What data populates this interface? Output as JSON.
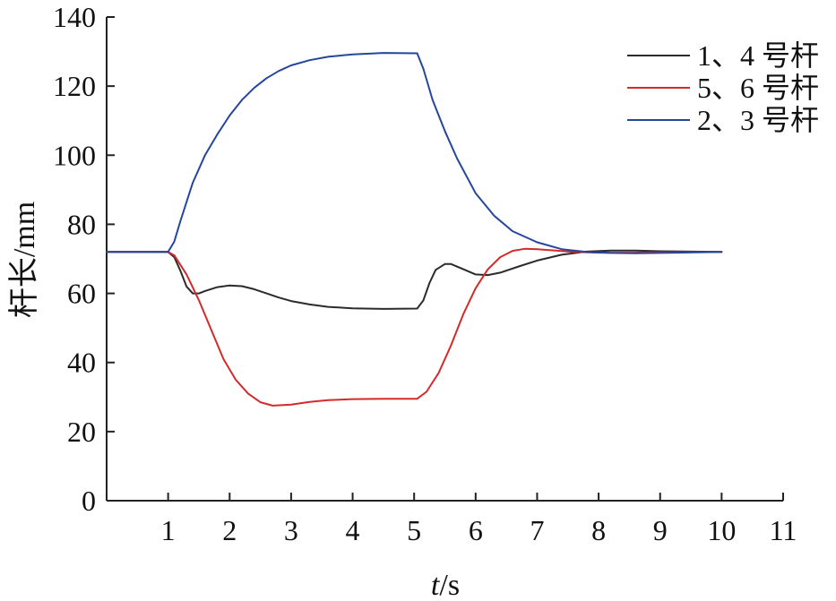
{
  "chart_data": {
    "type": "line",
    "xlabel_italic": "t",
    "xlabel_unit": "/s",
    "ylabel": "杆长/mm",
    "xlim": [
      0,
      11
    ],
    "ylim": [
      0,
      140
    ],
    "xticks": [
      1,
      2,
      3,
      4,
      5,
      6,
      7,
      8,
      9,
      10,
      11
    ],
    "yticks": [
      0,
      20,
      40,
      60,
      80,
      100,
      120,
      140
    ],
    "grid": false,
    "legend_position": "top-right",
    "series": [
      {
        "name": "1、4 号杆",
        "color": "#2b2b2b",
        "points": [
          [
            0,
            72
          ],
          [
            1.0,
            72
          ],
          [
            1.1,
            70.5
          ],
          [
            1.2,
            66.5
          ],
          [
            1.3,
            62
          ],
          [
            1.4,
            60
          ],
          [
            1.5,
            60
          ],
          [
            1.6,
            60.7
          ],
          [
            1.8,
            61.8
          ],
          [
            2.0,
            62.3
          ],
          [
            2.2,
            62.1
          ],
          [
            2.4,
            61.2
          ],
          [
            2.6,
            60
          ],
          [
            2.8,
            58.8
          ],
          [
            3.0,
            57.8
          ],
          [
            3.3,
            56.8
          ],
          [
            3.6,
            56.1
          ],
          [
            4.0,
            55.7
          ],
          [
            4.5,
            55.5
          ],
          [
            5.05,
            55.6
          ],
          [
            5.15,
            58
          ],
          [
            5.25,
            63
          ],
          [
            5.35,
            66.8
          ],
          [
            5.5,
            68.5
          ],
          [
            5.6,
            68.5
          ],
          [
            5.8,
            67
          ],
          [
            6.0,
            65.5
          ],
          [
            6.2,
            65.3
          ],
          [
            6.4,
            66
          ],
          [
            6.7,
            67.8
          ],
          [
            7.0,
            69.5
          ],
          [
            7.4,
            71.2
          ],
          [
            7.8,
            72.1
          ],
          [
            8.2,
            72.4
          ],
          [
            8.6,
            72.4
          ],
          [
            9.0,
            72.2
          ],
          [
            10.0,
            72
          ]
        ]
      },
      {
        "name": "5、6 号杆",
        "color": "#d42a2a",
        "points": [
          [
            0,
            72
          ],
          [
            1.0,
            72
          ],
          [
            1.1,
            71
          ],
          [
            1.3,
            65.5
          ],
          [
            1.5,
            58
          ],
          [
            1.7,
            49.5
          ],
          [
            1.9,
            41
          ],
          [
            2.1,
            35
          ],
          [
            2.3,
            31
          ],
          [
            2.5,
            28.5
          ],
          [
            2.7,
            27.5
          ],
          [
            3.0,
            27.8
          ],
          [
            3.3,
            28.6
          ],
          [
            3.6,
            29.1
          ],
          [
            4.0,
            29.4
          ],
          [
            4.5,
            29.5
          ],
          [
            5.05,
            29.5
          ],
          [
            5.2,
            31.5
          ],
          [
            5.4,
            37
          ],
          [
            5.6,
            45
          ],
          [
            5.8,
            54
          ],
          [
            6.0,
            61.5
          ],
          [
            6.2,
            67
          ],
          [
            6.4,
            70.5
          ],
          [
            6.6,
            72.3
          ],
          [
            6.8,
            72.9
          ],
          [
            7.0,
            72.8
          ],
          [
            7.3,
            72.4
          ],
          [
            7.6,
            72
          ],
          [
            8.0,
            71.8
          ],
          [
            8.5,
            71.8
          ],
          [
            9.0,
            71.9
          ],
          [
            10.0,
            72
          ]
        ]
      },
      {
        "name": "2、3 号杆",
        "color": "#24469c",
        "points": [
          [
            0,
            72
          ],
          [
            1.0,
            72
          ],
          [
            1.1,
            75
          ],
          [
            1.2,
            81
          ],
          [
            1.4,
            92
          ],
          [
            1.6,
            100
          ],
          [
            1.8,
            106
          ],
          [
            2.0,
            111.5
          ],
          [
            2.2,
            116
          ],
          [
            2.4,
            119.5
          ],
          [
            2.6,
            122.3
          ],
          [
            2.8,
            124.4
          ],
          [
            3.0,
            126
          ],
          [
            3.3,
            127.5
          ],
          [
            3.6,
            128.5
          ],
          [
            4.0,
            129.2
          ],
          [
            4.5,
            129.6
          ],
          [
            5.05,
            129.5
          ],
          [
            5.15,
            125
          ],
          [
            5.3,
            116
          ],
          [
            5.5,
            107
          ],
          [
            5.7,
            99
          ],
          [
            6.0,
            89
          ],
          [
            6.3,
            82.5
          ],
          [
            6.6,
            78
          ],
          [
            7.0,
            74.8
          ],
          [
            7.4,
            72.8
          ],
          [
            7.8,
            72
          ],
          [
            8.2,
            71.7
          ],
          [
            8.6,
            71.6
          ],
          [
            9.0,
            71.7
          ],
          [
            10.0,
            72
          ]
        ]
      }
    ]
  }
}
